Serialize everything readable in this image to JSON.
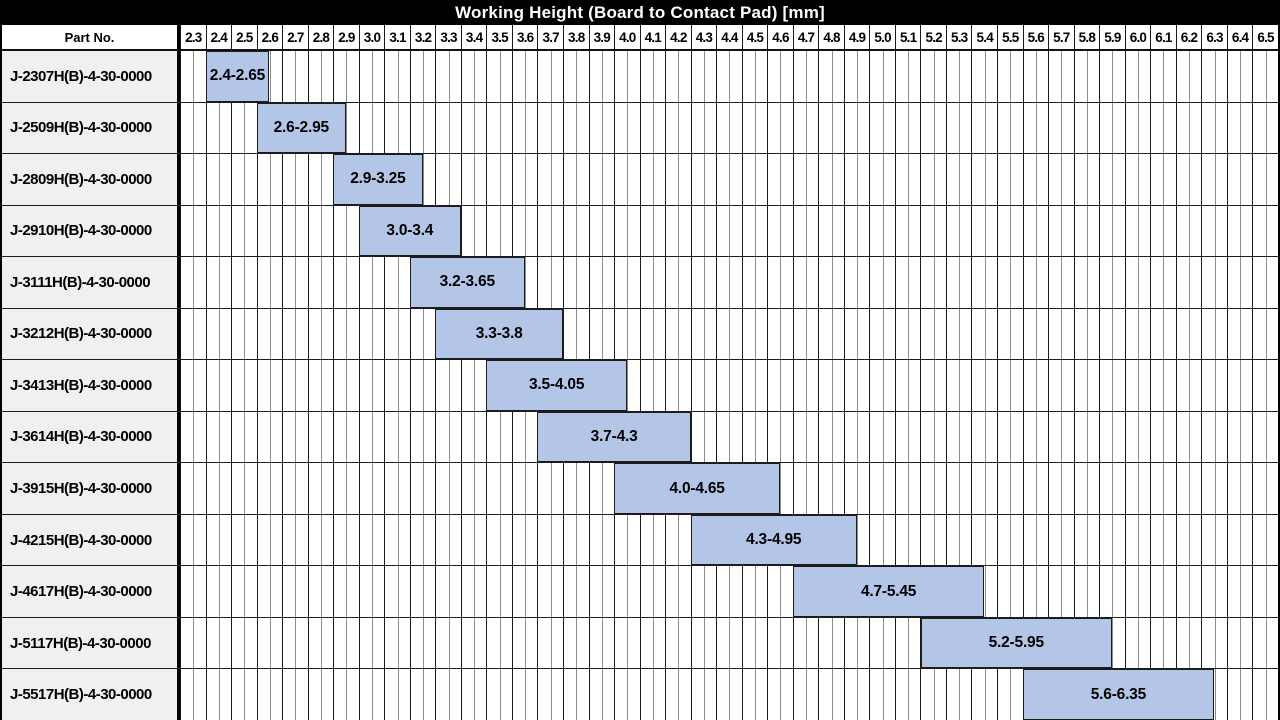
{
  "title": "Working Height (Board to Contact Pad) [mm]",
  "header": {
    "part_no_label": "Part No."
  },
  "axis": {
    "ticks": [
      "2.3",
      "2.4",
      "2.5",
      "2.6",
      "2.7",
      "2.8",
      "2.9",
      "3.0",
      "3.1",
      "3.2",
      "3.3",
      "3.4",
      "3.5",
      "3.6",
      "3.7",
      "3.8",
      "3.9",
      "4.0",
      "4.1",
      "4.2",
      "4.3",
      "4.4",
      "4.5",
      "4.6",
      "4.7",
      "4.8",
      "4.9",
      "5.0",
      "5.1",
      "5.2",
      "5.3",
      "5.4",
      "5.5",
      "5.6",
      "5.7",
      "5.8",
      "5.9",
      "6.0",
      "6.1",
      "6.2",
      "6.3",
      "6.4",
      "6.5"
    ],
    "domain_min": 2.3,
    "domain_max": 6.6,
    "major_step": 0.1,
    "minor_step": 0.05
  },
  "colors": {
    "banner_bg": "#000000",
    "part_col_bg": "#f0f0f0",
    "bar_fill": "#b4c6e7",
    "bar_border": "#1c1c1c",
    "major_line": "#1a1a1a",
    "minor_line": "#8c8c8c"
  },
  "chart_data": {
    "type": "bar",
    "subtype": "horizontal-range-gantt",
    "title": "Working Height (Board to Contact Pad) [mm]",
    "xlabel": "",
    "ylabel": "Part No.",
    "xlim": [
      2.3,
      6.6
    ],
    "grid": true,
    "rows": [
      {
        "part_no": "J-2307H(B)-4-30-0000",
        "range_start": 2.4,
        "range_end": 2.65,
        "label": "2.4-2.65"
      },
      {
        "part_no": "J-2509H(B)-4-30-0000",
        "range_start": 2.6,
        "range_end": 2.95,
        "label": "2.6-2.95"
      },
      {
        "part_no": "J-2809H(B)-4-30-0000",
        "range_start": 2.9,
        "range_end": 3.25,
        "label": "2.9-3.25"
      },
      {
        "part_no": "J-2910H(B)-4-30-0000",
        "range_start": 3.0,
        "range_end": 3.4,
        "label": "3.0-3.4"
      },
      {
        "part_no": "J-3111H(B)-4-30-0000",
        "range_start": 3.2,
        "range_end": 3.65,
        "label": "3.2-3.65"
      },
      {
        "part_no": "J-3212H(B)-4-30-0000",
        "range_start": 3.3,
        "range_end": 3.8,
        "label": "3.3-3.8"
      },
      {
        "part_no": "J-3413H(B)-4-30-0000",
        "range_start": 3.5,
        "range_end": 4.05,
        "label": "3.5-4.05"
      },
      {
        "part_no": "J-3614H(B)-4-30-0000",
        "range_start": 3.7,
        "range_end": 4.3,
        "label": "3.7-4.3"
      },
      {
        "part_no": "J-3915H(B)-4-30-0000",
        "range_start": 4.0,
        "range_end": 4.65,
        "label": "4.0-4.65"
      },
      {
        "part_no": "J-4215H(B)-4-30-0000",
        "range_start": 4.3,
        "range_end": 4.95,
        "label": "4.3-4.95"
      },
      {
        "part_no": "J-4617H(B)-4-30-0000",
        "range_start": 4.7,
        "range_end": 5.45,
        "label": "4.7-5.45"
      },
      {
        "part_no": "J-5117H(B)-4-30-0000",
        "range_start": 5.2,
        "range_end": 5.95,
        "label": "5.2-5.95"
      },
      {
        "part_no": "J-5517H(B)-4-30-0000",
        "range_start": 5.6,
        "range_end": 6.35,
        "label": "5.6-6.35"
      }
    ]
  }
}
